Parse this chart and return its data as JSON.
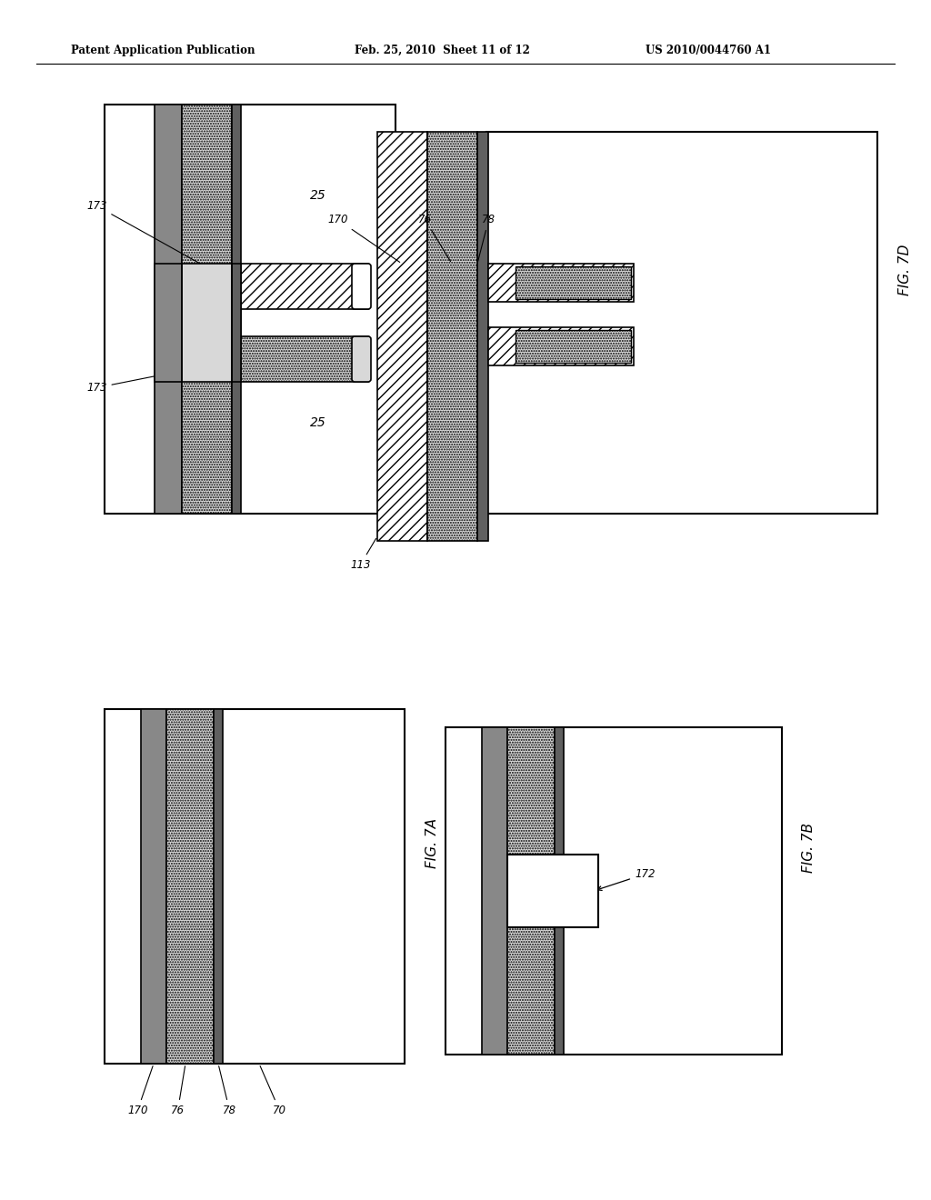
{
  "title_left": "Patent Application Publication",
  "title_mid": "Feb. 25, 2010  Sheet 11 of 12",
  "title_right": "US 2010/0044760 A1",
  "background": "#ffffff",
  "col_dark": "#808080",
  "col_dotted_bg": "#e0e0e0",
  "col_thin_dark": "#606060",
  "col_hatch_bg": "#ffffff"
}
